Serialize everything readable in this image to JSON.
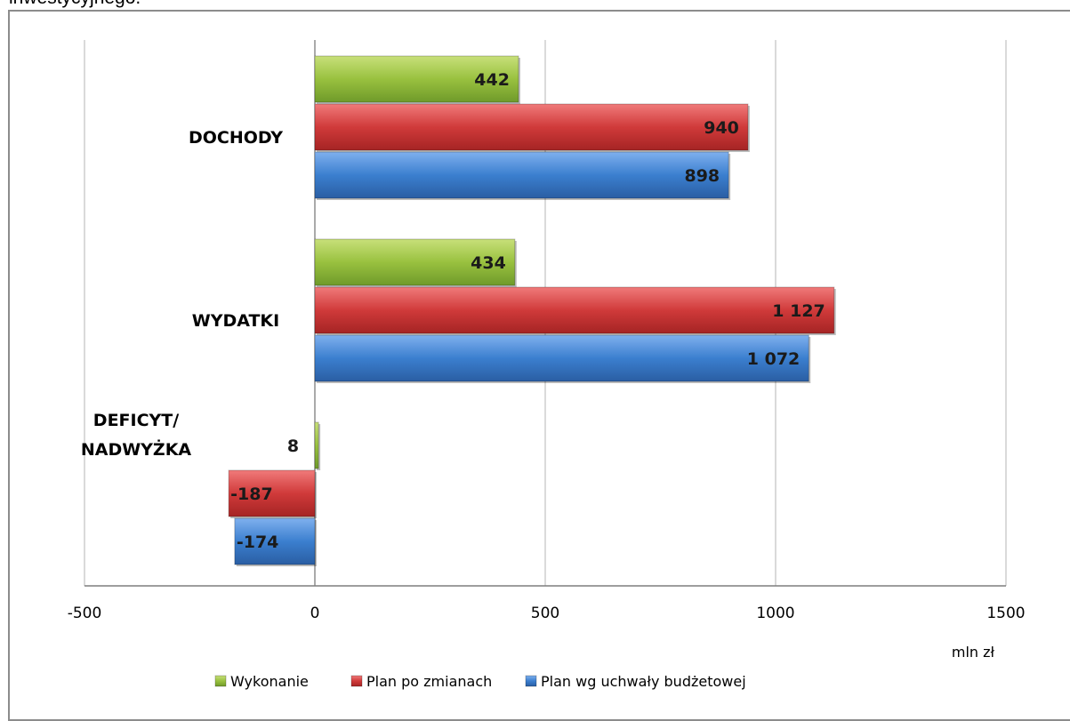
{
  "intro_text": "inwestycyjnego.",
  "chart_data": {
    "type": "bar",
    "orientation": "horizontal",
    "categories": [
      "DOCHODY",
      "WYDATKI",
      "DEFICYT/ NADWYŻKA"
    ],
    "category_lines": [
      [
        "DOCHODY"
      ],
      [
        "WYDATKI"
      ],
      [
        "DEFICYT/",
        "NADWYŻKA"
      ]
    ],
    "series": [
      {
        "name": "Wykonanie",
        "color": "#99c13f",
        "values": [
          442,
          434,
          8
        ],
        "labels": [
          "442",
          "434",
          "8"
        ]
      },
      {
        "name": "Plan po zmianach",
        "color": "#d03a3a",
        "values": [
          940,
          1127,
          -187
        ],
        "labels": [
          "940",
          "1 127",
          "-187"
        ]
      },
      {
        "name": "Plan wg uchwały budżetowej",
        "color": "#3b7fcf",
        "values": [
          898,
          1072,
          -174
        ],
        "labels": [
          "898",
          "1 072",
          "-174"
        ]
      }
    ],
    "x_ticks": [
      -500,
      0,
      500,
      1000,
      1500
    ],
    "x_tick_labels": [
      "-500",
      "0",
      "500",
      "1000",
      "1500"
    ],
    "xlim": [
      -500,
      1500
    ],
    "xlabel": "mln zł",
    "grid": true,
    "legend_position": "bottom"
  }
}
